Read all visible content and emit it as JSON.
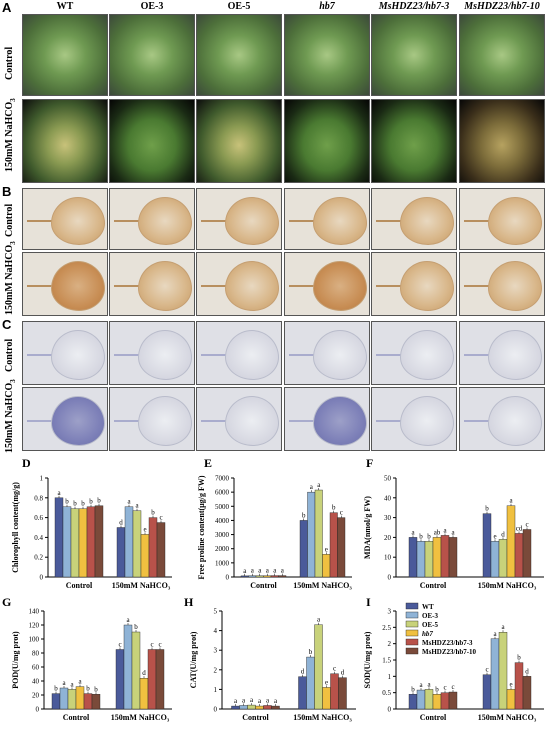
{
  "genotypes": [
    {
      "label": "WT",
      "italic": false
    },
    {
      "label": "OE-3",
      "italic": false
    },
    {
      "label": "OE-5",
      "italic": false
    },
    {
      "label": "hb7",
      "italic": true
    },
    {
      "label": "MsHDZ23/hb7-3",
      "italic": true
    },
    {
      "label": "MsHDZ23/hb7-10",
      "italic": true
    }
  ],
  "panel_letters": {
    "A": "A",
    "B": "B",
    "C": "C",
    "D": "D",
    "E": "E",
    "F": "F",
    "G": "G",
    "H": "H",
    "I": "I"
  },
  "row_labels": {
    "control": "Control",
    "salt_prefix": "150mM NaHCO",
    "salt_sub": "3"
  },
  "colors": {
    "WT": "#4a5a9a",
    "OE-3": "#8fb3d6",
    "OE-5": "#c8d27a",
    "hb7": "#f0c040",
    "MsHDZ23/hb7-3": "#b8524a",
    "MsHDZ23/hb7-10": "#7a4a3a"
  },
  "legend": [
    "WT",
    "OE-3",
    "OE-5",
    "hb7",
    "MsHDZ23/hb7-3",
    "MsHDZ23/hb7-10"
  ],
  "chart_data": [
    {
      "id": "D",
      "type": "bar",
      "categories": [
        "Control",
        "150mM NaHCO₃"
      ],
      "ylabel": "Chlorophyll content(mg/g)",
      "ylim": [
        0,
        1.0
      ],
      "yticks": [
        0,
        0.2,
        0.4,
        0.6,
        0.8,
        1.0
      ],
      "series": [
        {
          "name": "WT",
          "values": [
            0.8,
            0.5
          ]
        },
        {
          "name": "OE-3",
          "values": [
            0.71,
            0.71
          ]
        },
        {
          "name": "OE-5",
          "values": [
            0.69,
            0.67
          ]
        },
        {
          "name": "hb7",
          "values": [
            0.69,
            0.43
          ]
        },
        {
          "name": "MsHDZ23/hb7-3",
          "values": [
            0.71,
            0.6
          ]
        },
        {
          "name": "MsHDZ23/hb7-10",
          "values": [
            0.72,
            0.55
          ]
        }
      ],
      "letters": [
        [
          "a",
          "b",
          "b",
          "b",
          "b",
          "b"
        ],
        [
          "d",
          "a",
          "a",
          "e",
          "b",
          "c"
        ]
      ]
    },
    {
      "id": "E",
      "type": "bar",
      "categories": [
        "Control",
        "150mM NaHCO₃"
      ],
      "ylabel": "Free proline content(μg/g FW)",
      "ylim": [
        0,
        7000
      ],
      "yticks": [
        0,
        1000,
        2000,
        3000,
        4000,
        5000,
        6000,
        7000
      ],
      "series": [
        {
          "name": "WT",
          "values": [
            80,
            4000
          ]
        },
        {
          "name": "OE-3",
          "values": [
            90,
            6000
          ]
        },
        {
          "name": "OE-5",
          "values": [
            90,
            6150
          ]
        },
        {
          "name": "hb7",
          "values": [
            90,
            1600
          ]
        },
        {
          "name": "MsHDZ23/hb7-3",
          "values": [
            100,
            4550
          ]
        },
        {
          "name": "MsHDZ23/hb7-10",
          "values": [
            100,
            4200
          ]
        }
      ],
      "letters": [
        [
          "a",
          "a",
          "a",
          "a",
          "a",
          "a"
        ],
        [
          "b",
          "a",
          "a",
          "e",
          "b",
          "c"
        ]
      ]
    },
    {
      "id": "F",
      "type": "bar",
      "categories": [
        "Control",
        "150mM NaHCO₃"
      ],
      "ylabel": "MDA(nmol/g FW)",
      "ylim": [
        0,
        50
      ],
      "yticks": [
        0,
        10,
        20,
        30,
        40,
        50
      ],
      "series": [
        {
          "name": "WT",
          "values": [
            20,
            32
          ]
        },
        {
          "name": "OE-3",
          "values": [
            18,
            18
          ]
        },
        {
          "name": "OE-5",
          "values": [
            18,
            19
          ]
        },
        {
          "name": "hb7",
          "values": [
            20,
            36
          ]
        },
        {
          "name": "MsHDZ23/hb7-3",
          "values": [
            21,
            22
          ]
        },
        {
          "name": "MsHDZ23/hb7-10",
          "values": [
            20,
            24
          ]
        }
      ],
      "letters": [
        [
          "a",
          "b",
          "b",
          "ab",
          "a",
          "a"
        ],
        [
          "b",
          "e",
          "d",
          "a",
          "cd",
          "c"
        ]
      ]
    },
    {
      "id": "G",
      "type": "bar",
      "categories": [
        "Control",
        "150mM NaHCO₃"
      ],
      "ylabel": "POD(U/mg prot)",
      "ylim": [
        0,
        140
      ],
      "yticks": [
        0,
        20,
        40,
        60,
        80,
        100,
        120,
        140
      ],
      "series": [
        {
          "name": "WT",
          "values": [
            22,
            85
          ]
        },
        {
          "name": "OE-3",
          "values": [
            30,
            120
          ]
        },
        {
          "name": "OE-5",
          "values": [
            28,
            110
          ]
        },
        {
          "name": "hb7",
          "values": [
            32,
            44
          ]
        },
        {
          "name": "MsHDZ23/hb7-3",
          "values": [
            22,
            85
          ]
        },
        {
          "name": "MsHDZ23/hb7-10",
          "values": [
            21,
            85
          ]
        }
      ],
      "letters": [
        [
          "b",
          "a",
          "a",
          "a",
          "b",
          "b"
        ],
        [
          "c",
          "a",
          "b",
          "d",
          "c",
          "c"
        ]
      ]
    },
    {
      "id": "H",
      "type": "bar",
      "categories": [
        "Control",
        "150mM NaHCO₃"
      ],
      "ylabel": "CAT(U/mg prot)",
      "ylim": [
        0,
        5
      ],
      "yticks": [
        0,
        1,
        2,
        3,
        4,
        5
      ],
      "series": [
        {
          "name": "WT",
          "values": [
            0.15,
            1.65
          ]
        },
        {
          "name": "OE-3",
          "values": [
            0.18,
            2.65
          ]
        },
        {
          "name": "OE-5",
          "values": [
            0.2,
            4.3
          ]
        },
        {
          "name": "hb7",
          "values": [
            0.15,
            1.1
          ]
        },
        {
          "name": "MsHDZ23/hb7-3",
          "values": [
            0.18,
            1.8
          ]
        },
        {
          "name": "MsHDZ23/hb7-10",
          "values": [
            0.15,
            1.6
          ]
        }
      ],
      "letters": [
        [
          "a",
          "a",
          "a",
          "a",
          "a",
          "a"
        ],
        [
          "d",
          "b",
          "a",
          "e",
          "c",
          "d"
        ]
      ]
    },
    {
      "id": "I",
      "type": "bar",
      "categories": [
        "Control",
        "150mM NaHCO₃"
      ],
      "ylabel": "SOD(U/mg prot)",
      "ylim": [
        0,
        3.0
      ],
      "yticks": [
        0,
        0.5,
        1.0,
        1.5,
        2.0,
        2.5,
        3.0
      ],
      "series": [
        {
          "name": "WT",
          "values": [
            0.45,
            1.05
          ]
        },
        {
          "name": "OE-3",
          "values": [
            0.58,
            2.15
          ]
        },
        {
          "name": "OE-5",
          "values": [
            0.6,
            2.35
          ]
        },
        {
          "name": "hb7",
          "values": [
            0.45,
            0.6
          ]
        },
        {
          "name": "MsHDZ23/hb7-3",
          "values": [
            0.5,
            1.42
          ]
        },
        {
          "name": "MsHDZ23/hb7-10",
          "values": [
            0.52,
            1.0
          ]
        }
      ],
      "letters": [
        [
          "b",
          "a",
          "a",
          "b",
          "c",
          "c"
        ],
        [
          "c",
          "a",
          "a",
          "e",
          "b",
          "d"
        ]
      ]
    }
  ]
}
